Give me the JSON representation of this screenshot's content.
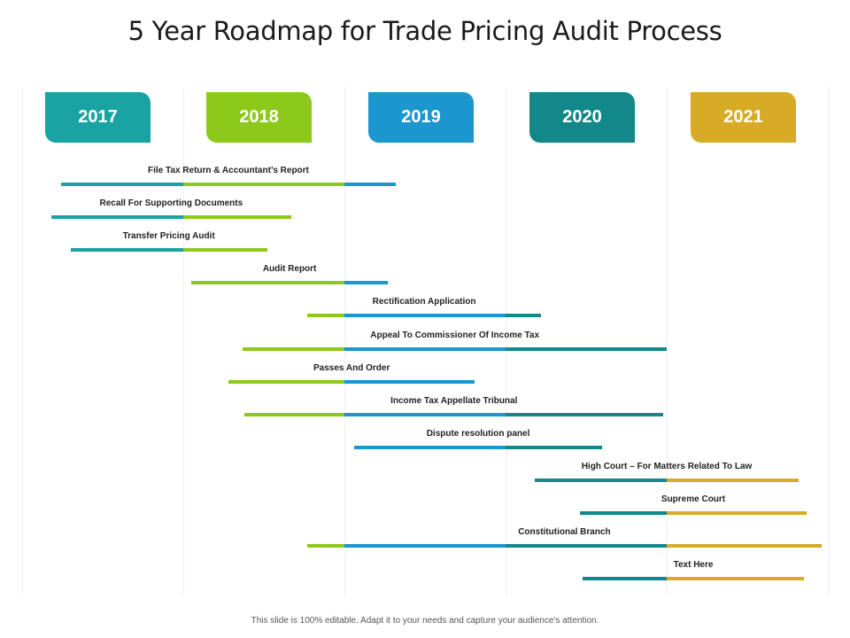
{
  "title": "5 Year Roadmap for Trade Pricing Audit Process",
  "footer": "This slide is 100% editable. Adapt it to your needs and capture your audience's attention.",
  "years": [
    {
      "label": "2017",
      "color": "#1aa3a3"
    },
    {
      "label": "2018",
      "color": "#8cc91b"
    },
    {
      "label": "2019",
      "color": "#1b96cf"
    },
    {
      "label": "2020",
      "color": "#13888a"
    },
    {
      "label": "2021",
      "color": "#d7ab26"
    }
  ],
  "tasks": [
    {
      "label": "File Tax Return & Accountant’s Report",
      "start": 2017.24,
      "end": 2019.32
    },
    {
      "label": "Recall For Supporting Documents",
      "start": 2017.18,
      "end": 2018.67
    },
    {
      "label": "Transfer Pricing Audit",
      "start": 2017.3,
      "end": 2018.52
    },
    {
      "label": "Audit Report",
      "start": 2018.05,
      "end": 2019.27
    },
    {
      "label": "Rectification Application",
      "start": 2018.77,
      "end": 2020.22
    },
    {
      "label": "Appeal To Commissioner Of Income Tax",
      "start": 2018.37,
      "end": 2021.0
    },
    {
      "label": "Passes And Order",
      "start": 2018.28,
      "end": 2019.81
    },
    {
      "label": "Income Tax Appellate Tribunal",
      "start": 2018.38,
      "end": 2020.98
    },
    {
      "label": "Dispute resolution panel",
      "start": 2019.06,
      "end": 2020.6
    },
    {
      "label": "High Court – For Matters Related To Law",
      "start": 2020.18,
      "end": 2021.82
    },
    {
      "label": "Supreme Court",
      "start": 2020.46,
      "end": 2021.87
    },
    {
      "label": "Constitutional Branch",
      "start": 2018.77,
      "end": 2021.96
    },
    {
      "label": "Text Here",
      "start": 2020.48,
      "end": 2021.85
    }
  ]
}
